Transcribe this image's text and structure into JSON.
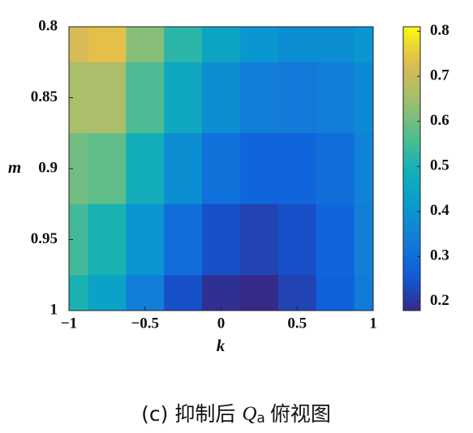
{
  "chart_data": {
    "type": "heatmap",
    "x_label": "k",
    "y_label": "m",
    "x": [
      -1,
      -0.75,
      -0.5,
      -0.25,
      0,
      0.25,
      0.5,
      0.75,
      1
    ],
    "y": [
      0.8,
      0.85,
      0.9,
      0.95,
      1
    ],
    "z": [
      [
        0.72,
        0.74,
        0.62,
        0.52,
        0.45,
        0.4,
        0.38,
        0.38,
        0.4
      ],
      [
        0.66,
        0.66,
        0.56,
        0.46,
        0.38,
        0.34,
        0.33,
        0.34,
        0.37
      ],
      [
        0.6,
        0.58,
        0.48,
        0.38,
        0.31,
        0.28,
        0.28,
        0.3,
        0.35
      ],
      [
        0.55,
        0.5,
        0.4,
        0.3,
        0.24,
        0.22,
        0.24,
        0.28,
        0.34
      ],
      [
        0.5,
        0.44,
        0.34,
        0.24,
        0.19,
        0.18,
        0.22,
        0.27,
        0.33
      ]
    ],
    "xlim": [
      -1,
      1
    ],
    "ylim": [
      0.8,
      1
    ],
    "xticks": [
      {
        "value": -1,
        "label": "−1"
      },
      {
        "value": -0.5,
        "label": "−0.5"
      },
      0,
      0.5,
      1
    ],
    "yticks": [
      0.8,
      0.85,
      0.9,
      0.95,
      1
    ],
    "colormap": "parula",
    "clim": [
      0.18,
      0.81
    ],
    "cticks": [
      0.2,
      0.3,
      0.4,
      0.5,
      0.6,
      0.7,
      0.8
    ],
    "caption_prefix": "(c) 抑制后",
    "caption_symbol": "Q",
    "caption_subscript": "a",
    "caption_suffix": "俯视图"
  }
}
